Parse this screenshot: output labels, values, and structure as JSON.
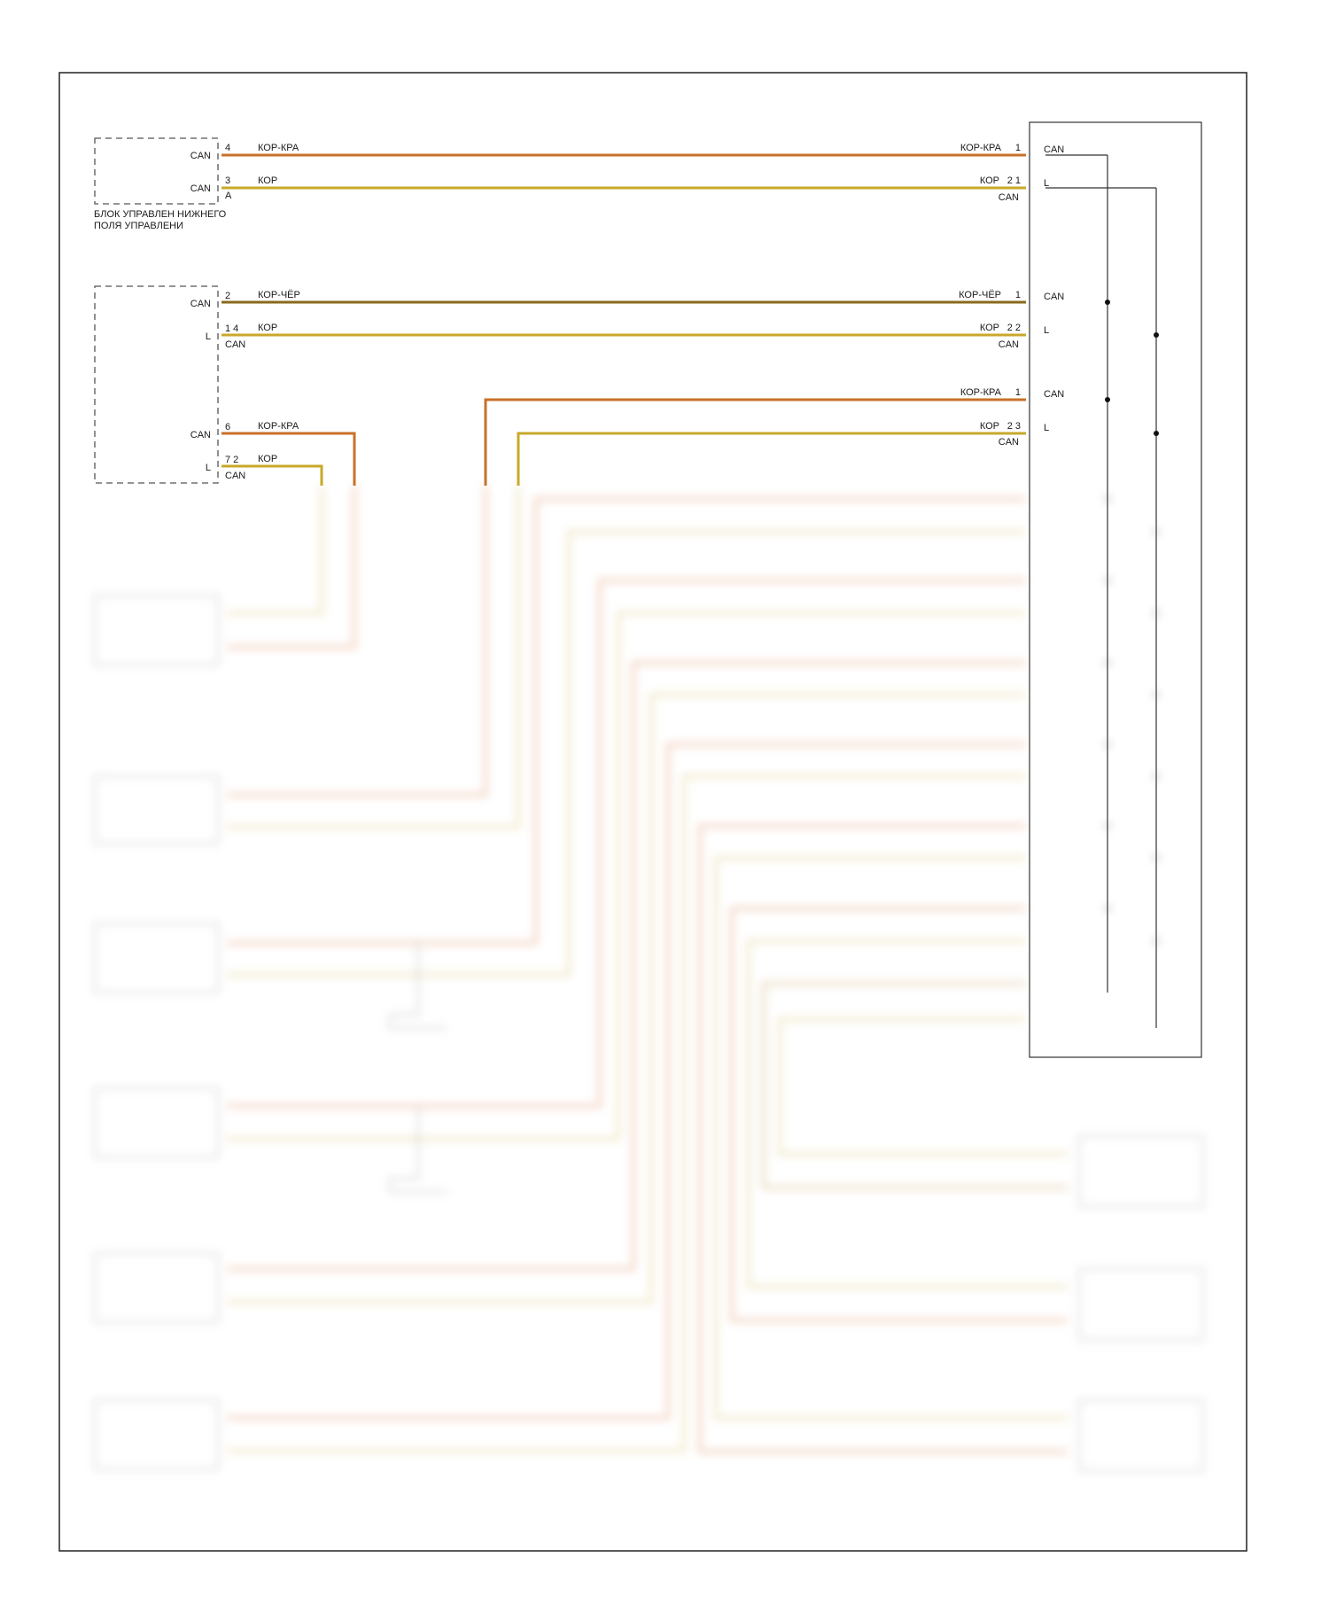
{
  "colors": {
    "kor_kra": "#c8702a",
    "kor": "#c9a82a",
    "kor_chyor": "#8a6a1a",
    "frame": "#222222"
  },
  "labels": {
    "can": "CAN",
    "l": "L",
    "a": "A",
    "kor_kra": "КОР-КРА",
    "kor": "КОР",
    "kor_chyor": "КОР-ЧЁР"
  },
  "module1": {
    "caption_line1": "БЛОК УПРАВЛЕН НИЖНЕГО",
    "caption_line2": "ПОЛЯ УПРАВЛЕНИ",
    "pins": [
      "4",
      "3"
    ],
    "right_pins": [
      "1",
      "2 1"
    ]
  },
  "module2": {
    "pins": [
      "2",
      "1 4",
      "6",
      "7 2"
    ],
    "right_pins": [
      "1",
      "2 2",
      "1",
      "2 3"
    ]
  },
  "icons": [
    "ground-icon"
  ]
}
